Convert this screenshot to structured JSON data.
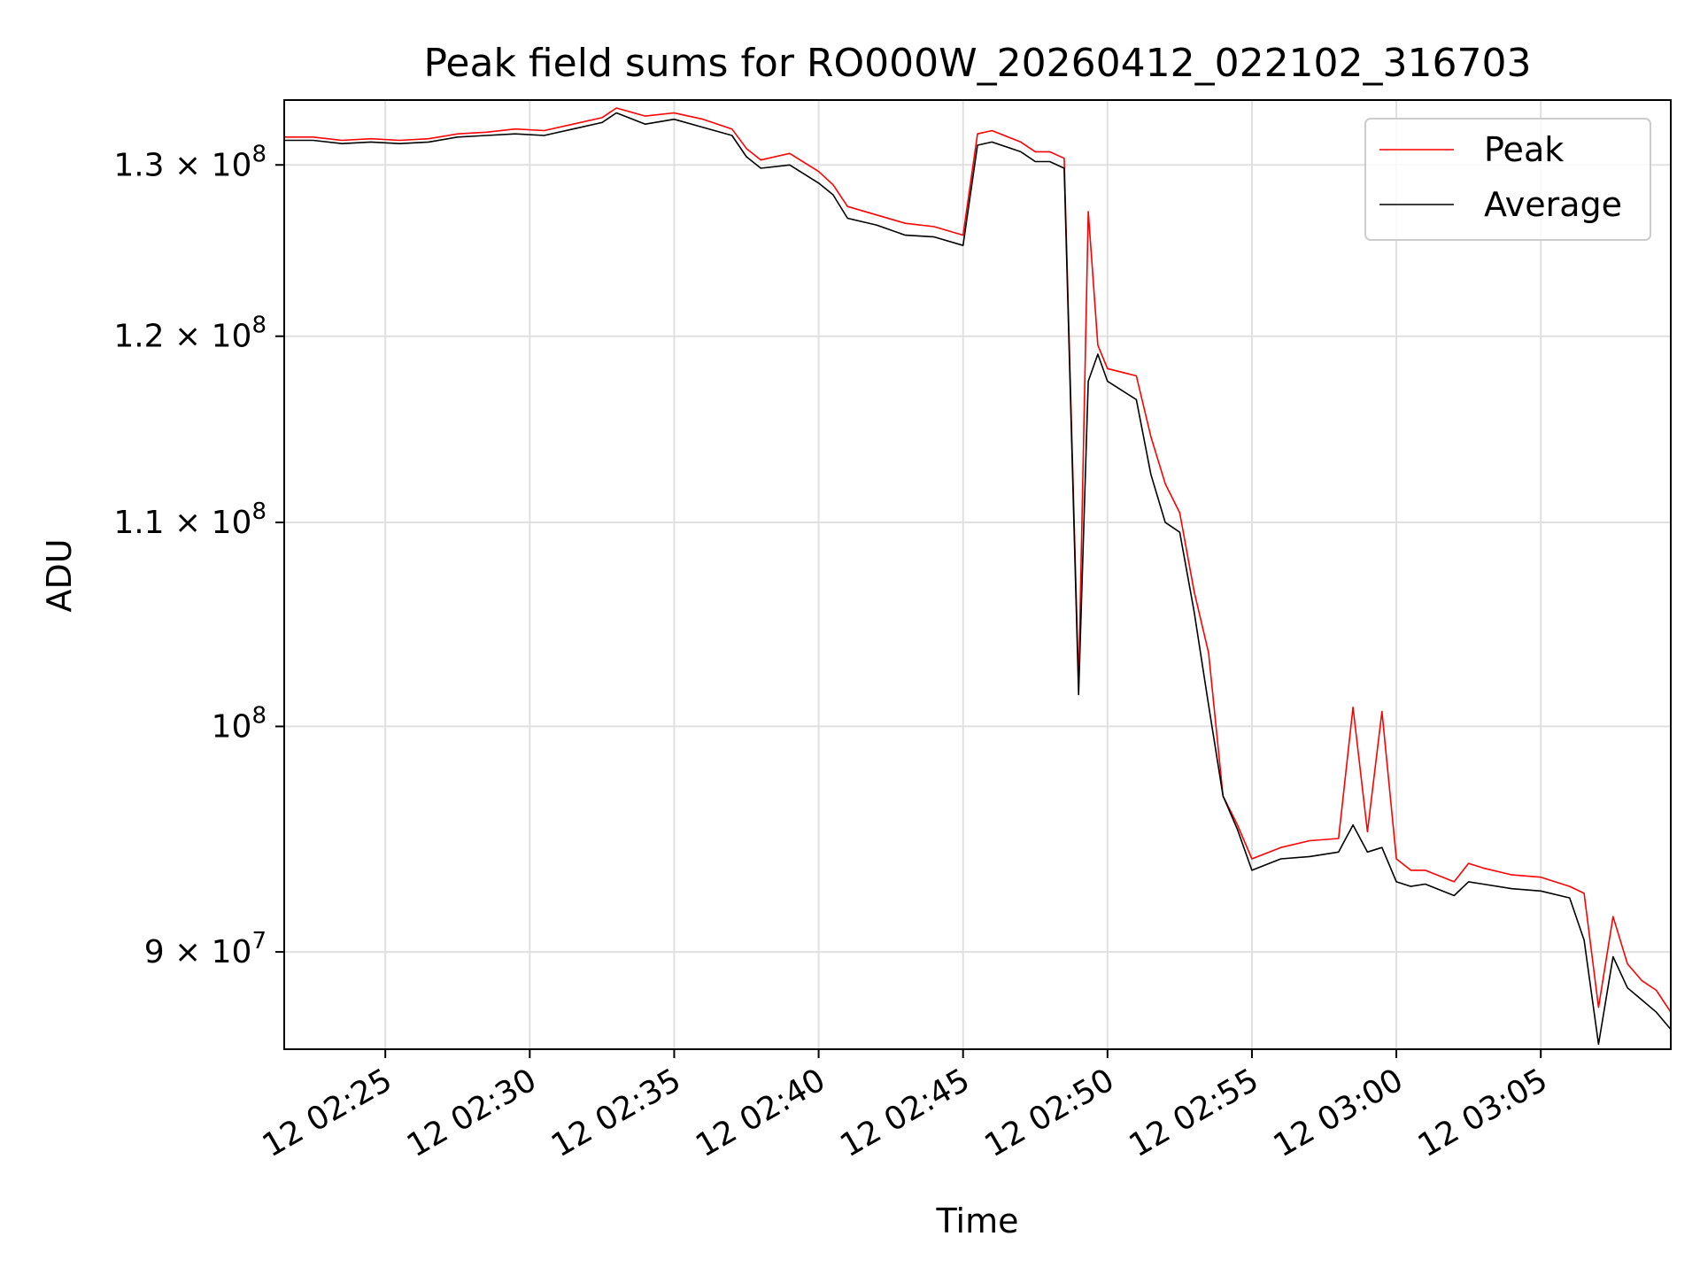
{
  "chart_data": {
    "type": "line",
    "title": "Peak field sums for RO000W_20260412_022102_316703",
    "xlabel": "Time",
    "ylabel": "ADU",
    "y_scale": "log",
    "xlim": [
      "02:21:30",
      "03:09:30"
    ],
    "ylim": [
      86000000,
      134000000
    ],
    "x_ticks": [
      "12 02:25",
      "12 02:30",
      "12 02:35",
      "12 02:40",
      "12 02:45",
      "12 02:50",
      "12 02:55",
      "12 03:00",
      "12 03:05"
    ],
    "y_ticks": [
      {
        "value": 90000000,
        "mantissa": "9",
        "base": "10",
        "exp": "7"
      },
      {
        "value": 100000000,
        "mantissa": "",
        "base": "10",
        "exp": "8"
      },
      {
        "value": 110000000,
        "mantissa": "1.1",
        "base": "10",
        "exp": "8"
      },
      {
        "value": 120000000,
        "mantissa": "1.2",
        "base": "10",
        "exp": "8"
      },
      {
        "value": 130000000,
        "mantissa": "1.3",
        "base": "10",
        "exp": "8"
      }
    ],
    "grid": true,
    "legend_position": "top-right",
    "series": [
      {
        "name": "Peak",
        "color": "#ff0000",
        "points": [
          [
            "02:21:30",
            131.7
          ],
          [
            "02:22:30",
            131.7
          ],
          [
            "02:23:30",
            131.5
          ],
          [
            "02:24:30",
            131.6
          ],
          [
            "02:25:30",
            131.5
          ],
          [
            "02:26:30",
            131.6
          ],
          [
            "02:27:30",
            131.9
          ],
          [
            "02:28:30",
            132.0
          ],
          [
            "02:29:30",
            132.2
          ],
          [
            "02:30:30",
            132.1
          ],
          [
            "02:31:30",
            132.5
          ],
          [
            "02:32:30",
            132.9
          ],
          [
            "02:33:00",
            133.5
          ],
          [
            "02:34:00",
            133.0
          ],
          [
            "02:35:00",
            133.2
          ],
          [
            "02:36:00",
            132.8
          ],
          [
            "02:37:00",
            132.2
          ],
          [
            "02:37:30",
            131.0
          ],
          [
            "02:38:00",
            130.3
          ],
          [
            "02:39:00",
            130.7
          ],
          [
            "02:40:00",
            129.6
          ],
          [
            "02:40:30",
            128.8
          ],
          [
            "02:41:00",
            127.5
          ],
          [
            "02:42:00",
            127.0
          ],
          [
            "02:43:00",
            126.5
          ],
          [
            "02:44:00",
            126.3
          ],
          [
            "02:45:00",
            125.8
          ],
          [
            "02:45:30",
            131.9
          ],
          [
            "02:46:00",
            132.1
          ],
          [
            "02:47:00",
            131.4
          ],
          [
            "02:47:30",
            130.8
          ],
          [
            "02:48:00",
            130.8
          ],
          [
            "02:48:30",
            130.4
          ],
          [
            "02:49:00",
            102.0
          ],
          [
            "02:49:20",
            127.2
          ],
          [
            "02:49:40",
            119.5
          ],
          [
            "02:50:00",
            118.2
          ],
          [
            "02:51:00",
            117.8
          ],
          [
            "02:51:30",
            114.5
          ],
          [
            "02:52:00",
            112.0
          ],
          [
            "02:52:30",
            110.5
          ],
          [
            "02:53:00",
            106.5
          ],
          [
            "02:53:30",
            103.5
          ],
          [
            "02:54:00",
            96.8
          ],
          [
            "02:54:30",
            95.5
          ],
          [
            "02:55:00",
            94.0
          ],
          [
            "02:56:00",
            94.5
          ],
          [
            "02:57:00",
            94.8
          ],
          [
            "02:58:00",
            94.9
          ],
          [
            "02:58:30",
            100.9
          ],
          [
            "02:59:00",
            95.2
          ],
          [
            "02:59:30",
            100.7
          ],
          [
            "03:00:00",
            94.0
          ],
          [
            "03:00:30",
            93.5
          ],
          [
            "03:01:00",
            93.5
          ],
          [
            "03:02:00",
            93.0
          ],
          [
            "03:02:30",
            93.8
          ],
          [
            "03:03:00",
            93.6
          ],
          [
            "03:04:00",
            93.3
          ],
          [
            "03:05:00",
            93.2
          ],
          [
            "03:06:00",
            92.8
          ],
          [
            "03:06:30",
            92.5
          ],
          [
            "03:07:00",
            87.7
          ],
          [
            "03:07:30",
            91.5
          ],
          [
            "03:08:00",
            89.5
          ],
          [
            "03:08:30",
            88.8
          ],
          [
            "03:09:00",
            88.4
          ],
          [
            "03:09:30",
            87.5
          ]
        ]
      },
      {
        "name": "Average",
        "color": "#000000",
        "points": [
          [
            "02:21:30",
            131.5
          ],
          [
            "02:22:30",
            131.5
          ],
          [
            "02:23:30",
            131.3
          ],
          [
            "02:24:30",
            131.4
          ],
          [
            "02:25:30",
            131.3
          ],
          [
            "02:26:30",
            131.4
          ],
          [
            "02:27:30",
            131.7
          ],
          [
            "02:28:30",
            131.8
          ],
          [
            "02:29:30",
            131.9
          ],
          [
            "02:30:30",
            131.8
          ],
          [
            "02:31:30",
            132.2
          ],
          [
            "02:32:30",
            132.6
          ],
          [
            "02:33:00",
            133.2
          ],
          [
            "02:34:00",
            132.5
          ],
          [
            "02:35:00",
            132.8
          ],
          [
            "02:36:00",
            132.3
          ],
          [
            "02:37:00",
            131.8
          ],
          [
            "02:37:30",
            130.5
          ],
          [
            "02:38:00",
            129.8
          ],
          [
            "02:39:00",
            130.0
          ],
          [
            "02:40:00",
            128.9
          ],
          [
            "02:40:30",
            128.2
          ],
          [
            "02:41:00",
            126.8
          ],
          [
            "02:42:00",
            126.4
          ],
          [
            "02:43:00",
            125.8
          ],
          [
            "02:44:00",
            125.7
          ],
          [
            "02:45:00",
            125.2
          ],
          [
            "02:45:30",
            131.2
          ],
          [
            "02:46:00",
            131.4
          ],
          [
            "02:47:00",
            130.8
          ],
          [
            "02:47:30",
            130.2
          ],
          [
            "02:48:00",
            130.2
          ],
          [
            "02:48:30",
            129.8
          ],
          [
            "02:49:00",
            101.5
          ],
          [
            "02:49:20",
            117.5
          ],
          [
            "02:49:40",
            119.0
          ],
          [
            "02:50:00",
            117.5
          ],
          [
            "02:51:00",
            116.5
          ],
          [
            "02:51:30",
            112.5
          ],
          [
            "02:52:00",
            110.0
          ],
          [
            "02:52:30",
            109.5
          ],
          [
            "02:53:00",
            105.5
          ],
          [
            "02:53:30",
            101.0
          ],
          [
            "02:54:00",
            96.8
          ],
          [
            "02:54:30",
            95.3
          ],
          [
            "02:55:00",
            93.5
          ],
          [
            "02:56:00",
            94.0
          ],
          [
            "02:57:00",
            94.1
          ],
          [
            "02:58:00",
            94.3
          ],
          [
            "02:58:30",
            95.5
          ],
          [
            "02:59:00",
            94.3
          ],
          [
            "02:59:30",
            94.5
          ],
          [
            "03:00:00",
            93.0
          ],
          [
            "03:00:30",
            92.8
          ],
          [
            "03:01:00",
            92.9
          ],
          [
            "03:02:00",
            92.4
          ],
          [
            "03:02:30",
            93.0
          ],
          [
            "03:03:00",
            92.9
          ],
          [
            "03:04:00",
            92.7
          ],
          [
            "03:05:00",
            92.6
          ],
          [
            "03:06:00",
            92.3
          ],
          [
            "03:06:30",
            90.5
          ],
          [
            "03:07:00",
            86.2
          ],
          [
            "03:07:30",
            89.8
          ],
          [
            "03:08:00",
            88.5
          ],
          [
            "03:08:30",
            88.0
          ],
          [
            "03:09:00",
            87.5
          ],
          [
            "03:09:30",
            86.8
          ]
        ]
      }
    ]
  }
}
